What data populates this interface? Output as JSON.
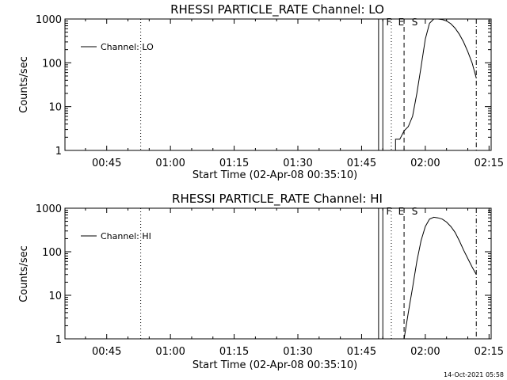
{
  "chart_data": [
    {
      "type": "line",
      "title": "RHESSI PARTICLE_RATE Channel: LO",
      "xlabel": "Start Time (02-Apr-08 00:35:10)",
      "ylabel": "Counts/sec",
      "yscale": "log",
      "ylim": [
        1,
        1000
      ],
      "xlim_minutes": [
        35.17,
        135.5
      ],
      "xticks": [
        "00:45",
        "01:00",
        "01:15",
        "01:30",
        "01:45",
        "02:00",
        "02:15"
      ],
      "yticks": [
        "1",
        "10",
        "100",
        "1000"
      ],
      "legend": "Channel: LO",
      "legend_position": "top-left",
      "flags": [
        "F",
        "E",
        "S"
      ],
      "series": [
        {
          "name": "Channel: LO",
          "x": [
            "01:53",
            "01:54",
            "01:55",
            "01:56",
            "01:57",
            "01:58",
            "01:59",
            "02:00",
            "02:01",
            "02:02",
            "02:03",
            "02:04",
            "02:05",
            "02:06",
            "02:07",
            "02:08",
            "02:09",
            "02:10",
            "02:11",
            "02:12"
          ],
          "y": [
            1.8,
            1.8,
            2.8,
            3.5,
            6,
            20,
            80,
            350,
            800,
            1000,
            1000,
            970,
            900,
            780,
            620,
            450,
            300,
            180,
            100,
            45
          ]
        }
      ],
      "vlines": [
        {
          "style": "dotted",
          "x": "00:53"
        },
        {
          "style": "solid",
          "x": "01:49"
        },
        {
          "style": "solid",
          "x": "01:50"
        },
        {
          "style": "dotted",
          "x": "01:52"
        },
        {
          "style": "dashed",
          "x": "01:55"
        },
        {
          "style": "dashdot",
          "x": "02:12"
        }
      ]
    },
    {
      "type": "line",
      "title": "RHESSI PARTICLE_RATE Channel: HI",
      "xlabel": "Start Time (02-Apr-08 00:35:10)",
      "ylabel": "Counts/sec",
      "yscale": "log",
      "ylim": [
        1,
        1000
      ],
      "xlim_minutes": [
        35.17,
        135.5
      ],
      "xticks": [
        "00:45",
        "01:00",
        "01:15",
        "01:30",
        "01:45",
        "02:00",
        "02:15"
      ],
      "yticks": [
        "1",
        "10",
        "100",
        "1000"
      ],
      "legend": "Channel: HI",
      "legend_position": "top-left",
      "flags": [
        "F",
        "E",
        "S"
      ],
      "series": [
        {
          "name": "Channel: HI",
          "x": [
            "01:55",
            "01:56",
            "01:57",
            "01:58",
            "01:59",
            "02:00",
            "02:01",
            "02:02",
            "02:03",
            "02:04",
            "02:05",
            "02:06",
            "02:07",
            "02:08",
            "02:09",
            "02:10",
            "02:11",
            "02:12"
          ],
          "y": [
            1,
            4,
            15,
            60,
            180,
            380,
            560,
            620,
            600,
            560,
            480,
            380,
            280,
            180,
            110,
            70,
            45,
            30
          ]
        }
      ],
      "vlines": [
        {
          "style": "dotted",
          "x": "00:53"
        },
        {
          "style": "solid",
          "x": "01:49"
        },
        {
          "style": "solid",
          "x": "01:50"
        },
        {
          "style": "dotted",
          "x": "01:52"
        },
        {
          "style": "dashed",
          "x": "01:55"
        },
        {
          "style": "dashdot",
          "x": "02:12"
        }
      ]
    }
  ],
  "footer": {
    "timestamp": "14-Oct-2021 05:58"
  }
}
